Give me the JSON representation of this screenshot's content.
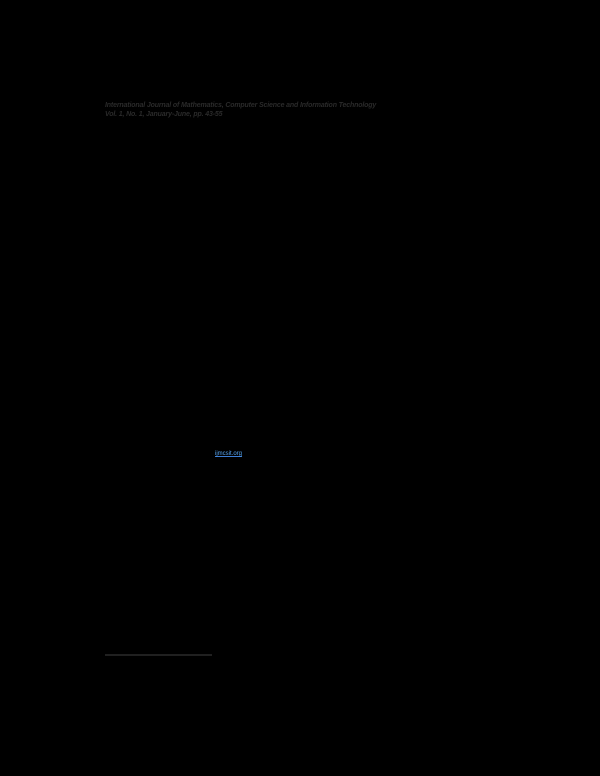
{
  "page": {
    "background_color": "#000000",
    "header": {
      "journal_title": "International Journal of Mathematics, Computer Science and Information Technology",
      "volume_info": "Vol. 1, No. 1, January-June, pp. 43-55",
      "text_color": "#2a2a2a"
    },
    "link": {
      "text": "ijmcsit.org",
      "color": "#57a6f2"
    },
    "footnote_rule": {
      "color": "#202020"
    }
  }
}
